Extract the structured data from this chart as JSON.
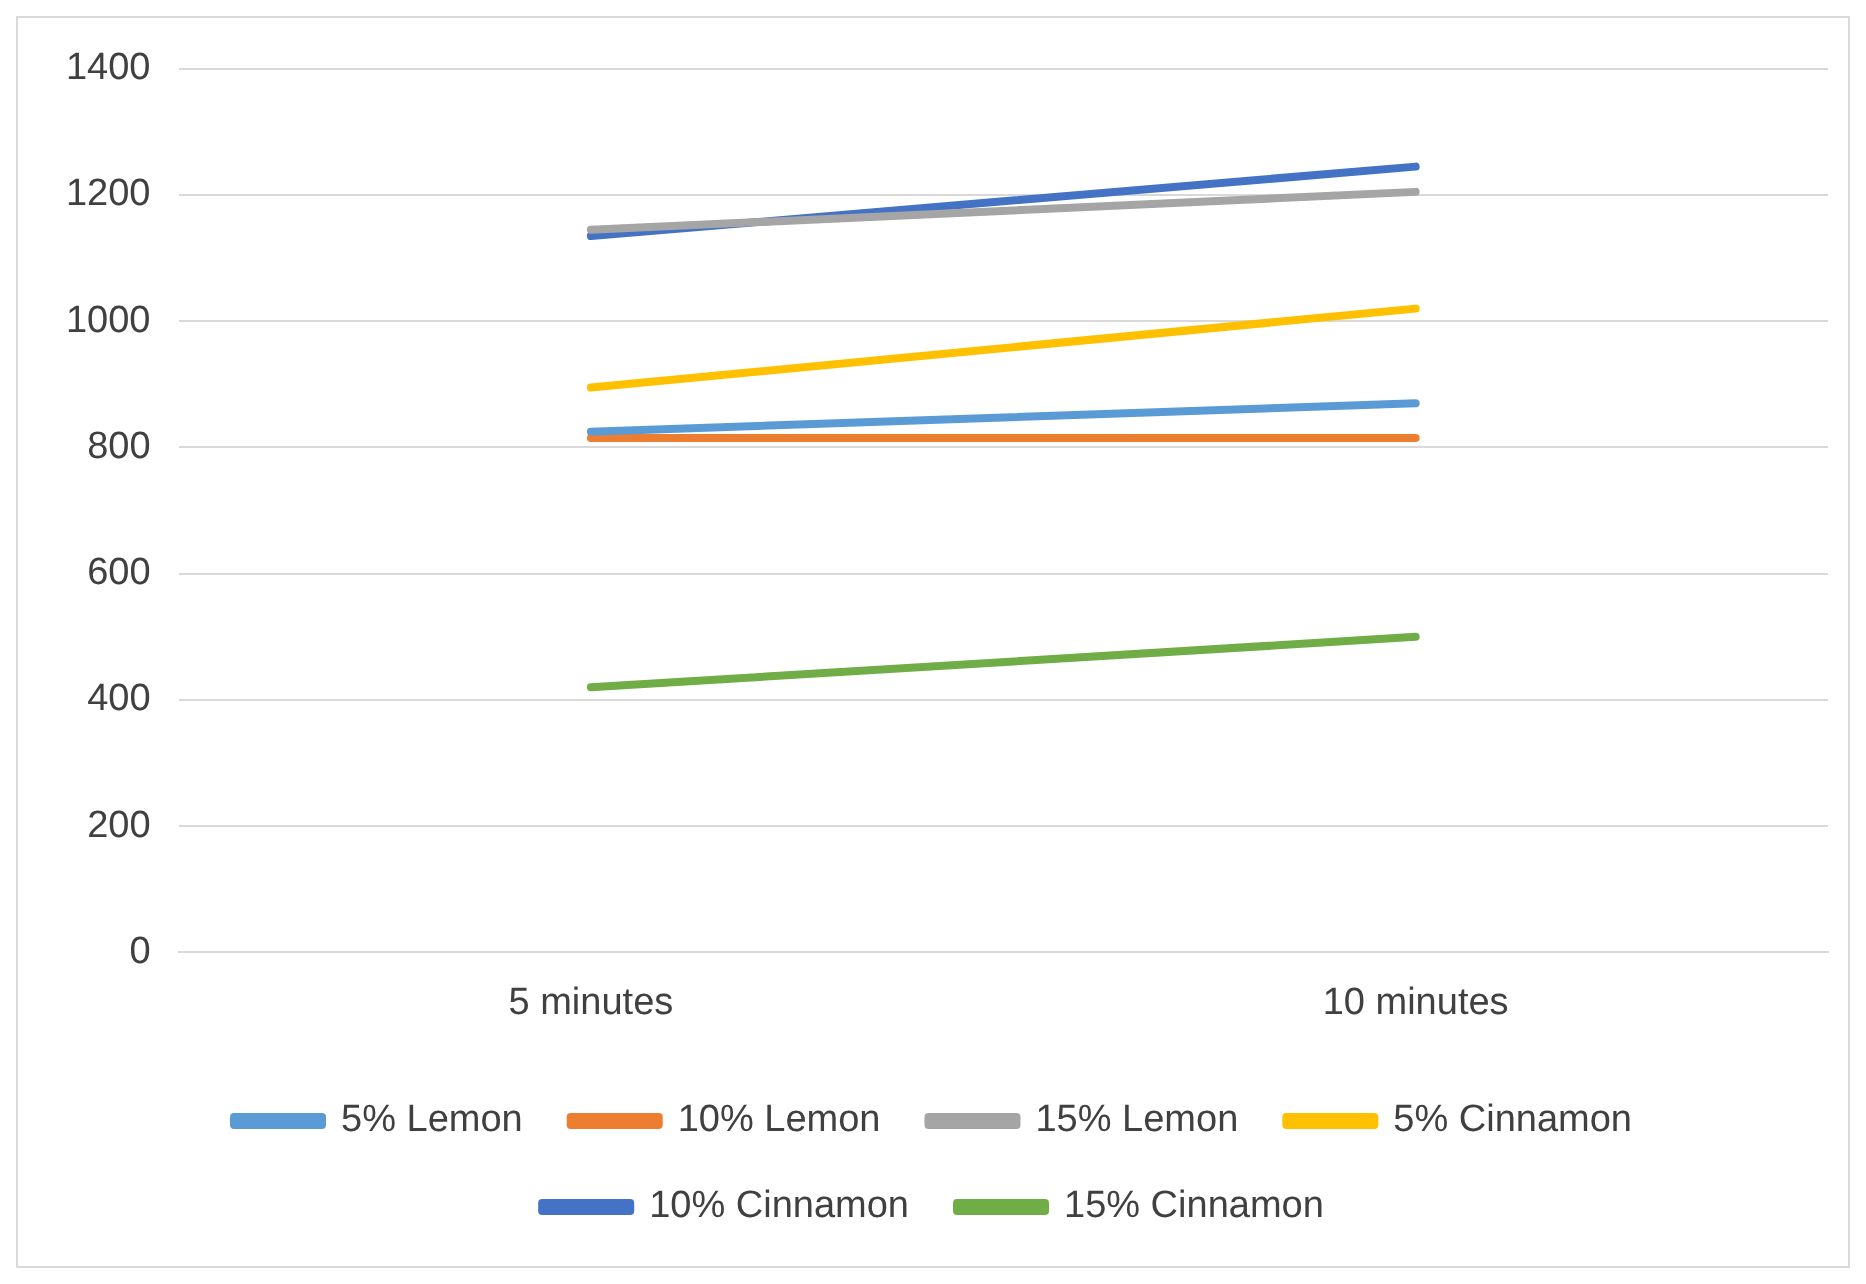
{
  "chart_data": {
    "type": "line",
    "categories": [
      "5 minutes",
      "10 minutes"
    ],
    "series": [
      {
        "name": "5% Lemon",
        "color": "#5b9bd5",
        "values": [
          825,
          870
        ]
      },
      {
        "name": "10% Lemon",
        "color": "#ed7d31",
        "values": [
          815,
          815
        ]
      },
      {
        "name": "15% Lemon",
        "color": "#a5a5a5",
        "values": [
          1145,
          1205
        ]
      },
      {
        "name": "5% Cinnamon",
        "color": "#ffc000",
        "values": [
          895,
          1020
        ]
      },
      {
        "name": "10% Cinnamon",
        "color": "#4472c4",
        "values": [
          1135,
          1245
        ]
      },
      {
        "name": "15% Cinnamon",
        "color": "#70ad47",
        "values": [
          420,
          500
        ]
      }
    ],
    "ylim": [
      0,
      1400
    ],
    "yticks": [
      0,
      200,
      400,
      600,
      800,
      1000,
      1200,
      1400
    ],
    "grid": "y",
    "legend": "bottom",
    "marker": "none",
    "line_style": "solid"
  }
}
